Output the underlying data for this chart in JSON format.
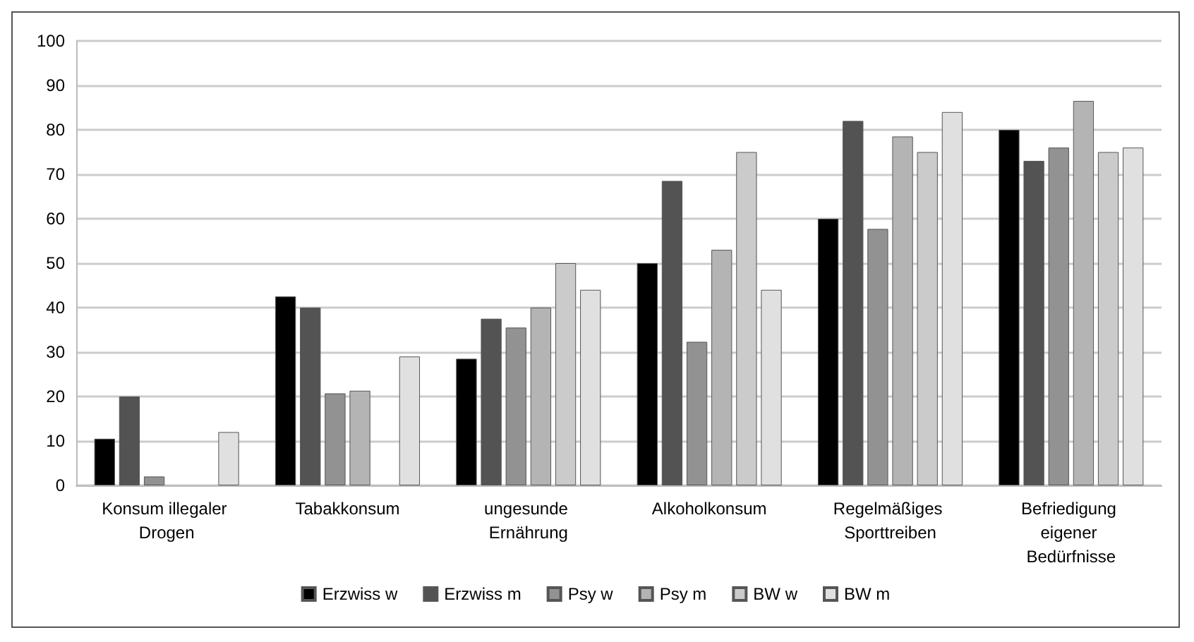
{
  "chart_data": {
    "type": "bar",
    "categories": [
      "Konsum illegaler Drogen",
      "Tabakkonsum",
      "ungesunde Ernährung",
      "Alkoholkonsum",
      "Regelmäßiges Sporttreiben",
      "Befriedigung eigener Bedürfnisse"
    ],
    "series": [
      {
        "name": "Erzwiss w",
        "color": "#000000",
        "values": [
          10.5,
          42.5,
          28.5,
          50,
          60,
          80
        ]
      },
      {
        "name": "Erzwiss m",
        "color": "#535353",
        "values": [
          20,
          40,
          37.5,
          68.5,
          82,
          73
        ]
      },
      {
        "name": "Psy w",
        "color": "#929292",
        "values": [
          2,
          20.7,
          35.5,
          32.3,
          57.7,
          76
        ]
      },
      {
        "name": "Psy m",
        "color": "#b4b4b4",
        "values": [
          null,
          21.3,
          40,
          53,
          78.5,
          86.5
        ]
      },
      {
        "name": "BW w",
        "color": "#cbcbcb",
        "values": [
          null,
          null,
          50,
          75,
          75,
          75
        ]
      },
      {
        "name": "BW m",
        "color": "#e0e0e0",
        "values": [
          12,
          29,
          44,
          44,
          84,
          76
        ]
      }
    ],
    "ylim": [
      0,
      100
    ],
    "yticks": [
      0,
      10,
      20,
      30,
      40,
      50,
      60,
      70,
      80,
      90,
      100
    ],
    "grid": "y",
    "legend": "bottom"
  }
}
